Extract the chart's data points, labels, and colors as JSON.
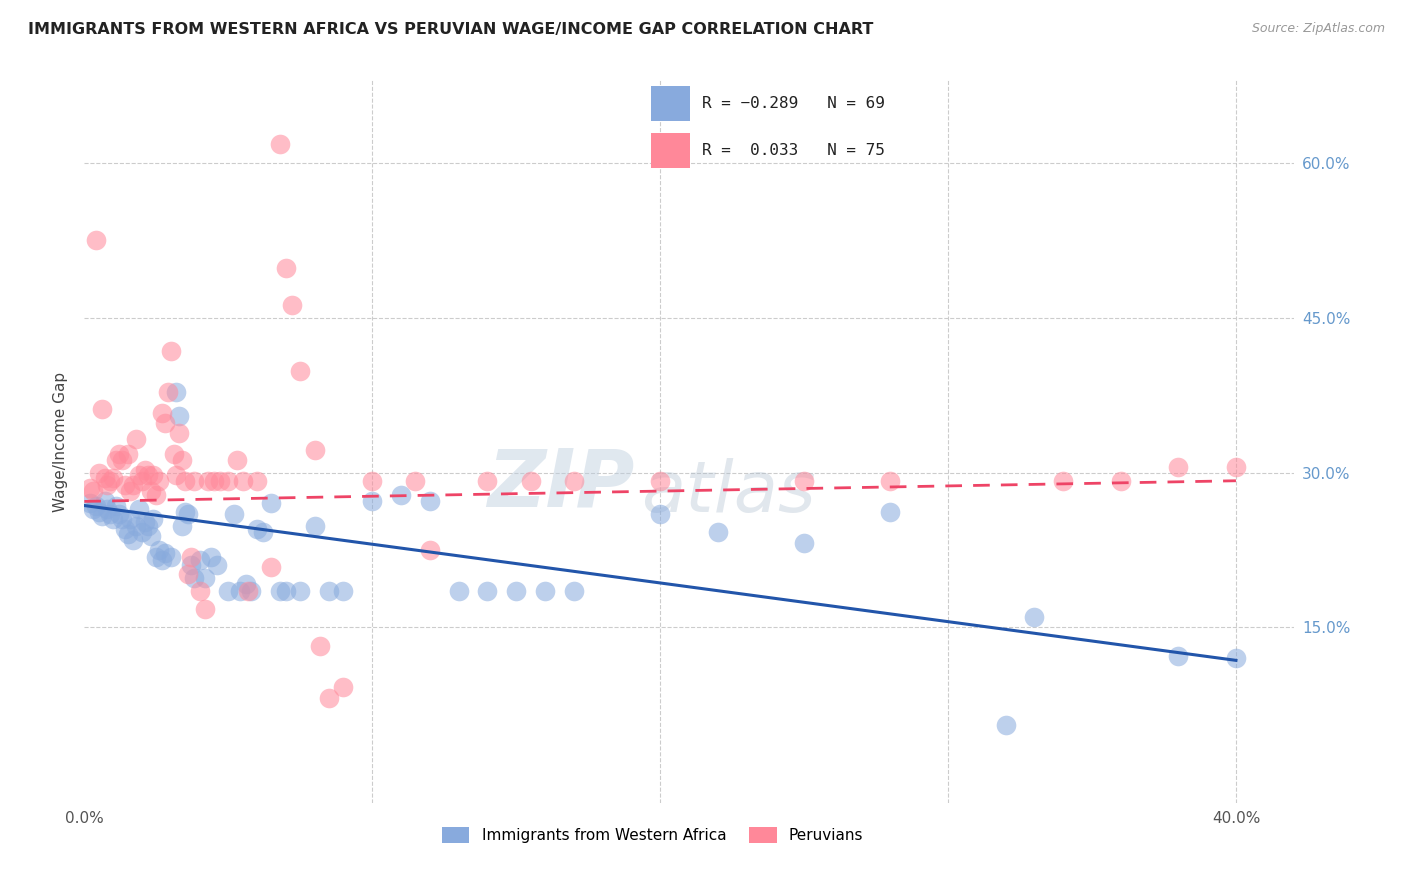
{
  "title": "IMMIGRANTS FROM WESTERN AFRICA VS PERUVIAN WAGE/INCOME GAP CORRELATION CHART",
  "source": "Source: ZipAtlas.com",
  "ylabel": "Wage/Income Gap",
  "xlim": [
    0.0,
    0.42
  ],
  "ylim": [
    -0.02,
    0.68
  ],
  "yticks": [
    0.0,
    0.15,
    0.3,
    0.45,
    0.6
  ],
  "xticks": [
    0.0,
    0.1,
    0.2,
    0.3,
    0.4
  ],
  "color_blue": "#88AADD",
  "color_pink": "#FF8899",
  "trendline_blue": [
    [
      0.0,
      0.268
    ],
    [
      0.4,
      0.118
    ]
  ],
  "trendline_pink": [
    [
      0.0,
      0.272
    ],
    [
      0.4,
      0.292
    ]
  ],
  "watermark_zip": "ZIP",
  "watermark_atlas": "atlas",
  "blue_points": [
    [
      0.002,
      0.27
    ],
    [
      0.003,
      0.265
    ],
    [
      0.004,
      0.268
    ],
    [
      0.005,
      0.262
    ],
    [
      0.006,
      0.258
    ],
    [
      0.007,
      0.272
    ],
    [
      0.008,
      0.265
    ],
    [
      0.009,
      0.26
    ],
    [
      0.01,
      0.255
    ],
    [
      0.011,
      0.268
    ],
    [
      0.012,
      0.26
    ],
    [
      0.013,
      0.255
    ],
    [
      0.014,
      0.245
    ],
    [
      0.015,
      0.24
    ],
    [
      0.016,
      0.255
    ],
    [
      0.017,
      0.235
    ],
    [
      0.018,
      0.248
    ],
    [
      0.019,
      0.265
    ],
    [
      0.02,
      0.242
    ],
    [
      0.021,
      0.252
    ],
    [
      0.022,
      0.248
    ],
    [
      0.023,
      0.238
    ],
    [
      0.024,
      0.255
    ],
    [
      0.025,
      0.218
    ],
    [
      0.026,
      0.225
    ],
    [
      0.027,
      0.215
    ],
    [
      0.028,
      0.222
    ],
    [
      0.03,
      0.218
    ],
    [
      0.032,
      0.378
    ],
    [
      0.033,
      0.355
    ],
    [
      0.034,
      0.248
    ],
    [
      0.035,
      0.262
    ],
    [
      0.036,
      0.26
    ],
    [
      0.037,
      0.21
    ],
    [
      0.038,
      0.198
    ],
    [
      0.04,
      0.215
    ],
    [
      0.042,
      0.198
    ],
    [
      0.044,
      0.218
    ],
    [
      0.046,
      0.21
    ],
    [
      0.05,
      0.185
    ],
    [
      0.052,
      0.26
    ],
    [
      0.054,
      0.185
    ],
    [
      0.056,
      0.192
    ],
    [
      0.058,
      0.185
    ],
    [
      0.06,
      0.245
    ],
    [
      0.062,
      0.242
    ],
    [
      0.065,
      0.27
    ],
    [
      0.068,
      0.185
    ],
    [
      0.07,
      0.185
    ],
    [
      0.075,
      0.185
    ],
    [
      0.08,
      0.248
    ],
    [
      0.085,
      0.185
    ],
    [
      0.09,
      0.185
    ],
    [
      0.1,
      0.272
    ],
    [
      0.11,
      0.278
    ],
    [
      0.12,
      0.272
    ],
    [
      0.13,
      0.185
    ],
    [
      0.14,
      0.185
    ],
    [
      0.15,
      0.185
    ],
    [
      0.16,
      0.185
    ],
    [
      0.17,
      0.185
    ],
    [
      0.2,
      0.26
    ],
    [
      0.22,
      0.242
    ],
    [
      0.25,
      0.232
    ],
    [
      0.28,
      0.262
    ],
    [
      0.32,
      0.055
    ],
    [
      0.33,
      0.16
    ],
    [
      0.38,
      0.122
    ],
    [
      0.4,
      0.12
    ]
  ],
  "pink_points": [
    [
      0.002,
      0.285
    ],
    [
      0.003,
      0.282
    ],
    [
      0.004,
      0.525
    ],
    [
      0.005,
      0.3
    ],
    [
      0.006,
      0.362
    ],
    [
      0.007,
      0.295
    ],
    [
      0.008,
      0.288
    ],
    [
      0.009,
      0.292
    ],
    [
      0.01,
      0.295
    ],
    [
      0.011,
      0.312
    ],
    [
      0.012,
      0.318
    ],
    [
      0.013,
      0.312
    ],
    [
      0.014,
      0.288
    ],
    [
      0.015,
      0.318
    ],
    [
      0.016,
      0.282
    ],
    [
      0.017,
      0.288
    ],
    [
      0.018,
      0.332
    ],
    [
      0.019,
      0.298
    ],
    [
      0.02,
      0.292
    ],
    [
      0.021,
      0.302
    ],
    [
      0.022,
      0.298
    ],
    [
      0.023,
      0.282
    ],
    [
      0.024,
      0.298
    ],
    [
      0.025,
      0.278
    ],
    [
      0.026,
      0.292
    ],
    [
      0.027,
      0.358
    ],
    [
      0.028,
      0.348
    ],
    [
      0.029,
      0.378
    ],
    [
      0.03,
      0.418
    ],
    [
      0.031,
      0.318
    ],
    [
      0.032,
      0.298
    ],
    [
      0.033,
      0.338
    ],
    [
      0.034,
      0.312
    ],
    [
      0.035,
      0.292
    ],
    [
      0.036,
      0.202
    ],
    [
      0.037,
      0.218
    ],
    [
      0.038,
      0.292
    ],
    [
      0.04,
      0.185
    ],
    [
      0.042,
      0.168
    ],
    [
      0.043,
      0.292
    ],
    [
      0.045,
      0.292
    ],
    [
      0.047,
      0.292
    ],
    [
      0.05,
      0.292
    ],
    [
      0.053,
      0.312
    ],
    [
      0.055,
      0.292
    ],
    [
      0.057,
      0.185
    ],
    [
      0.06,
      0.292
    ],
    [
      0.065,
      0.208
    ],
    [
      0.068,
      0.618
    ],
    [
      0.07,
      0.498
    ],
    [
      0.072,
      0.462
    ],
    [
      0.075,
      0.398
    ],
    [
      0.08,
      0.322
    ],
    [
      0.082,
      0.132
    ],
    [
      0.085,
      0.082
    ],
    [
      0.09,
      0.092
    ],
    [
      0.1,
      0.292
    ],
    [
      0.115,
      0.292
    ],
    [
      0.12,
      0.225
    ],
    [
      0.14,
      0.292
    ],
    [
      0.155,
      0.292
    ],
    [
      0.17,
      0.292
    ],
    [
      0.2,
      0.292
    ],
    [
      0.25,
      0.292
    ],
    [
      0.28,
      0.292
    ],
    [
      0.34,
      0.292
    ],
    [
      0.36,
      0.292
    ],
    [
      0.38,
      0.305
    ],
    [
      0.4,
      0.305
    ]
  ]
}
